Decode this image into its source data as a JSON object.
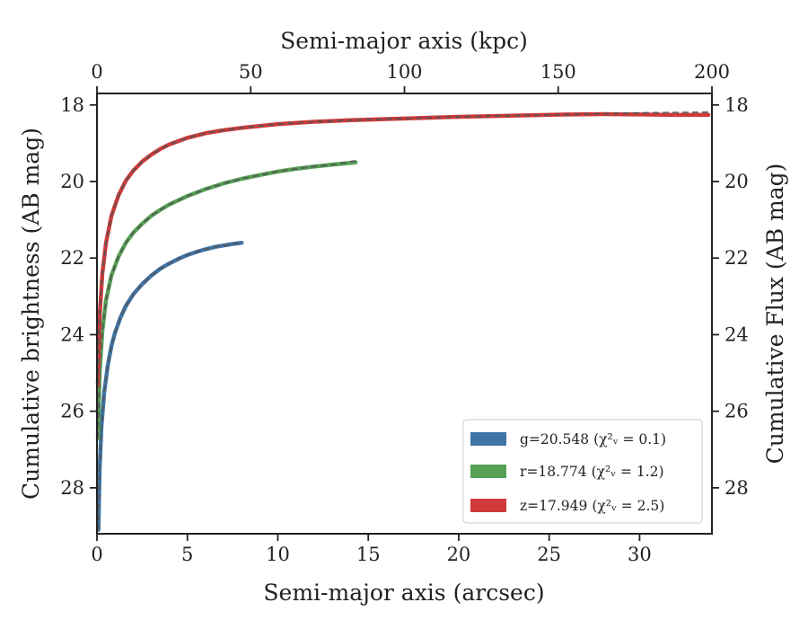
{
  "chart_data": {
    "type": "line",
    "x_label_bottom": "Semi-major axis (arcsec)",
    "x_label_top": "Semi-major axis (kpc)",
    "y_label_left": "Cumulative brightness (AB mag)",
    "y_label_right": "Cumulative Flux (AB mag)",
    "x_range": [
      0,
      34
    ],
    "x_top_range": [
      0,
      200
    ],
    "y_range": [
      29.2,
      17.7
    ],
    "y_inverted": true,
    "x_ticks": [
      "0",
      "5",
      "10",
      "15",
      "20",
      "25",
      "30"
    ],
    "x_top_ticks": [
      "0",
      "50",
      "100",
      "150",
      "200"
    ],
    "y_ticks": [
      "18",
      "20",
      "22",
      "24",
      "26",
      "28"
    ],
    "legend_position": "lower-right",
    "series": [
      {
        "name": "g=20.548",
        "chi_label": "(χ²ᵥ = 0.1)",
        "color": "#3f74a6",
        "x": [
          0.08,
          0.15,
          0.25,
          0.4,
          0.6,
          0.8,
          1.0,
          1.3,
          1.6,
          2.0,
          2.5,
          3.0,
          3.5,
          4.0,
          4.5,
          5.0,
          5.5,
          6.0,
          6.5,
          7.0,
          7.5,
          8.0
        ],
        "y": [
          29.1,
          27.5,
          26.4,
          25.5,
          24.8,
          24.3,
          23.95,
          23.55,
          23.25,
          22.95,
          22.68,
          22.46,
          22.28,
          22.14,
          22.02,
          21.92,
          21.84,
          21.77,
          21.71,
          21.67,
          21.63,
          21.6
        ],
        "model_y": [
          29.1,
          27.5,
          26.4,
          25.5,
          24.8,
          24.3,
          23.95,
          23.55,
          23.25,
          22.95,
          22.68,
          22.46,
          22.28,
          22.14,
          22.02,
          21.92,
          21.84,
          21.77,
          21.71,
          21.67,
          21.63,
          21.6
        ]
      },
      {
        "name": "r=18.774",
        "chi_label": "(χ²ᵥ = 1.2)",
        "color": "#55a055",
        "x": [
          0.05,
          0.15,
          0.3,
          0.5,
          0.8,
          1.2,
          1.6,
          2.0,
          2.5,
          3.0,
          3.5,
          4.0,
          5.0,
          6.0,
          7.0,
          8.0,
          9.0,
          10.0,
          11.0,
          12.0,
          13.0,
          14.3
        ],
        "y": [
          26.7,
          25.0,
          23.9,
          23.1,
          22.45,
          21.95,
          21.6,
          21.34,
          21.1,
          20.9,
          20.74,
          20.6,
          20.38,
          20.2,
          20.05,
          19.93,
          19.83,
          19.74,
          19.67,
          19.61,
          19.56,
          19.5
        ],
        "model_y": [
          26.7,
          25.0,
          23.9,
          23.1,
          22.45,
          21.95,
          21.6,
          21.34,
          21.1,
          20.9,
          20.74,
          20.6,
          20.38,
          20.2,
          20.05,
          19.93,
          19.83,
          19.74,
          19.67,
          19.61,
          19.56,
          19.46
        ]
      },
      {
        "name": "z=17.949",
        "chi_label": "(χ²ᵥ = 2.5)",
        "color": "#d03a3a",
        "x": [
          0.05,
          0.15,
          0.3,
          0.5,
          0.8,
          1.2,
          1.6,
          2.0,
          2.5,
          3.0,
          3.5,
          4.0,
          5.0,
          6.0,
          7.0,
          8.0,
          10.0,
          12.0,
          14.0,
          16.0,
          18.0,
          20.0,
          22.0,
          24.0,
          26.0,
          28.0,
          30.0,
          32.0,
          33.8
        ],
        "y": [
          25.3,
          23.5,
          22.4,
          21.6,
          20.9,
          20.35,
          19.98,
          19.72,
          19.48,
          19.3,
          19.15,
          19.03,
          18.86,
          18.74,
          18.66,
          18.6,
          18.5,
          18.44,
          18.4,
          18.37,
          18.34,
          18.31,
          18.29,
          18.27,
          18.25,
          18.24,
          18.25,
          18.26,
          18.26
        ],
        "model_y": [
          25.3,
          23.5,
          22.4,
          21.6,
          20.9,
          20.35,
          19.98,
          19.72,
          19.48,
          19.3,
          19.15,
          19.03,
          18.86,
          18.74,
          18.66,
          18.6,
          18.5,
          18.44,
          18.4,
          18.37,
          18.34,
          18.31,
          18.29,
          18.27,
          18.25,
          18.23,
          18.21,
          18.2,
          18.19
        ]
      }
    ]
  }
}
